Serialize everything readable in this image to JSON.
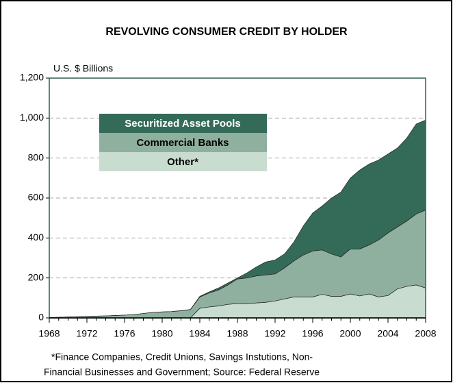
{
  "chart_data": {
    "type": "stacked_area",
    "title": "REVOLVING CONSUMER CREDIT BY HOLDER",
    "y_axis_label": "U.S. $ Billions",
    "footnote": [
      "*Finance Companies, Credit Unions, Savings Instutions, Non-",
      "Financial Businesses and Government; Source: Federal Reserve"
    ],
    "x": [
      1968,
      1969,
      1970,
      1971,
      1972,
      1973,
      1974,
      1975,
      1976,
      1977,
      1978,
      1979,
      1980,
      1981,
      1982,
      1983,
      1984,
      1985,
      1986,
      1987,
      1988,
      1989,
      1990,
      1991,
      1992,
      1993,
      1994,
      1995,
      1996,
      1997,
      1998,
      1999,
      2000,
      2001,
      2002,
      2003,
      2004,
      2005,
      2006,
      2007,
      2008
    ],
    "series": [
      {
        "name": "Other*",
        "color": "#c8dcd0",
        "text_color": "#000000",
        "values": [
          0,
          0,
          0,
          0,
          0,
          0,
          0,
          0,
          0,
          0,
          0,
          0,
          0,
          0,
          0,
          0,
          48,
          55,
          60,
          68,
          72,
          70,
          75,
          78,
          85,
          95,
          105,
          105,
          105,
          118,
          108,
          108,
          120,
          110,
          120,
          105,
          112,
          145,
          158,
          165,
          150
        ]
      },
      {
        "name": "Commercial Banks",
        "color": "#8fb09f",
        "text_color": "#000000",
        "values": [
          2,
          3,
          5,
          6,
          8,
          9,
          10,
          12,
          14,
          17,
          22,
          28,
          30,
          32,
          36,
          42,
          57,
          70,
          80,
          97,
          123,
          130,
          135,
          137,
          135,
          155,
          180,
          210,
          230,
          222,
          212,
          197,
          225,
          235,
          245,
          285,
          313,
          310,
          327,
          355,
          390
        ]
      },
      {
        "name": "Securitized Asset Pools",
        "color": "#336b58",
        "text_color": "#ffffff",
        "values": [
          0,
          0,
          0,
          0,
          0,
          0,
          0,
          0,
          0,
          0,
          0,
          0,
          0,
          0,
          0,
          0,
          3,
          5,
          10,
          10,
          5,
          25,
          45,
          65,
          70,
          70,
          95,
          145,
          190,
          220,
          280,
          325,
          355,
          395,
          405,
          400,
          395,
          395,
          415,
          450,
          450
        ]
      }
    ],
    "xlim": [
      1968,
      2008
    ],
    "xticks": [
      1968,
      1972,
      1976,
      1980,
      1984,
      1988,
      1992,
      1996,
      2000,
      2004,
      2008
    ],
    "ylim": [
      0,
      1200
    ],
    "yticks": [
      0,
      200,
      400,
      600,
      800,
      {
        "value": 1000,
        "label": "1,000"
      },
      {
        "value": 1200,
        "label": "1,200"
      }
    ],
    "grid": true
  }
}
